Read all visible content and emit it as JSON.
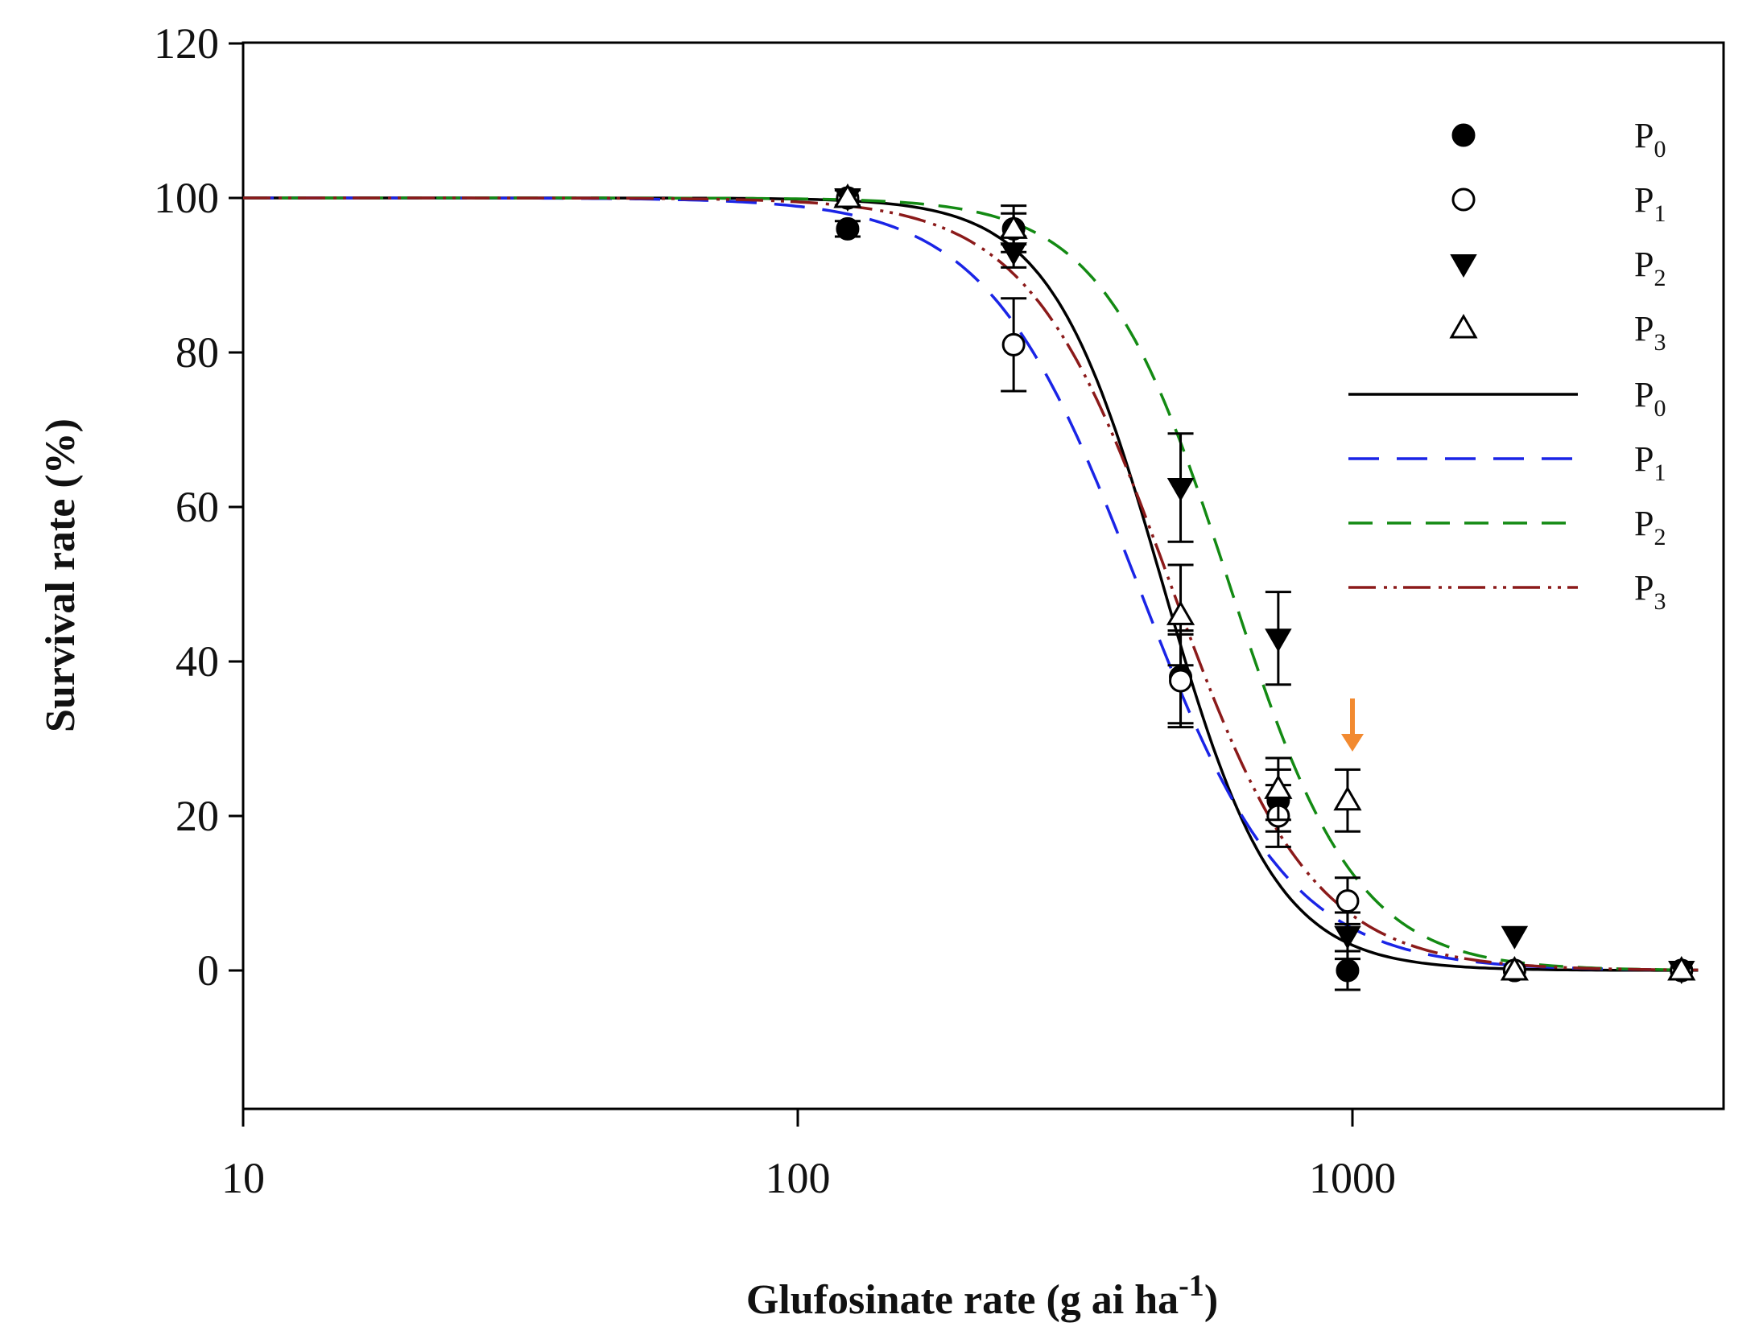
{
  "chart_data": {
    "type": "scatter",
    "title": "",
    "xlabel": "Glufosinate rate (g ai ha",
    "xlabel_sup": "-1",
    "xlabel_end": ")",
    "ylabel": "Survival rate (%)",
    "xscale": "log",
    "xlim": [
      10,
      4200
    ],
    "ylim": [
      -18,
      120
    ],
    "x_ticks": [
      10,
      100,
      1000
    ],
    "x_tick_labels": [
      "10",
      "100",
      "1000"
    ],
    "y_ticks": [
      0,
      20,
      40,
      60,
      80,
      100,
      120
    ],
    "y_tick_labels": [
      "0",
      "20",
      "40",
      "60",
      "80",
      "100",
      "120"
    ],
    "legend_position": "top-right",
    "point_series": [
      {
        "name": "P",
        "sub": "0",
        "marker": "filled-circle",
        "points": [
          {
            "x": 123,
            "y": 96,
            "err": 1
          },
          {
            "x": 245,
            "y": 96,
            "err": 2
          },
          {
            "x": 490,
            "y": 38,
            "err": 6
          },
          {
            "x": 735,
            "y": 22,
            "err": 4
          },
          {
            "x": 980,
            "y": 0,
            "err": 2.5
          },
          {
            "x": 1960,
            "y": 0,
            "err": 0
          },
          {
            "x": 3920,
            "y": 0,
            "err": 0
          }
        ]
      },
      {
        "name": "P",
        "sub": "1",
        "marker": "open-circle",
        "points": [
          {
            "x": 123,
            "y": 100,
            "err": 1
          },
          {
            "x": 245,
            "y": 81,
            "err": 6
          },
          {
            "x": 490,
            "y": 37.5,
            "err": 6
          },
          {
            "x": 735,
            "y": 20,
            "err": 4
          },
          {
            "x": 980,
            "y": 9,
            "err": 3
          },
          {
            "x": 1960,
            "y": 0,
            "err": 0
          },
          {
            "x": 3920,
            "y": 0,
            "err": 0
          }
        ]
      },
      {
        "name": "P",
        "sub": "2",
        "marker": "filled-triangle-down",
        "points": [
          {
            "x": 123,
            "y": 100,
            "err": 1
          },
          {
            "x": 245,
            "y": 93,
            "err": 2
          },
          {
            "x": 490,
            "y": 62.5,
            "err": 7
          },
          {
            "x": 735,
            "y": 43,
            "err": 6
          },
          {
            "x": 980,
            "y": 4.5,
            "err": 3
          },
          {
            "x": 1960,
            "y": 4.5,
            "err": 0
          },
          {
            "x": 3920,
            "y": 0,
            "err": 0
          }
        ]
      },
      {
        "name": "P",
        "sub": "3",
        "marker": "open-triangle-up",
        "points": [
          {
            "x": 123,
            "y": 100,
            "err": 1
          },
          {
            "x": 245,
            "y": 96,
            "err": 3
          },
          {
            "x": 490,
            "y": 46,
            "err": 6.5
          },
          {
            "x": 735,
            "y": 23.5,
            "err": 4
          },
          {
            "x": 980,
            "y": 22,
            "err": 4
          },
          {
            "x": 1960,
            "y": 0,
            "err": 0
          },
          {
            "x": 3920,
            "y": 0,
            "err": 0
          }
        ]
      }
    ],
    "fit_series": [
      {
        "name": "P",
        "sub": "0",
        "color": "#000000",
        "dash": "",
        "ed50": 455,
        "slope": 4.3
      },
      {
        "name": "P",
        "sub": "1",
        "color": "#1a24e6",
        "dash": "38,22",
        "ed50": 410,
        "slope": 3.2
      },
      {
        "name": "P",
        "sub": "2",
        "color": "#138a13",
        "dash": "30,18",
        "ed50": 600,
        "slope": 3.8
      },
      {
        "name": "P",
        "sub": "3",
        "color": "#8b1a1a",
        "dash": "34,10,4,8,4,8",
        "ed50": 470,
        "slope": 3.4
      }
    ],
    "annotation": {
      "type": "arrow",
      "x": 1000,
      "y_from": 32,
      "y_to": 27,
      "color": "#f28a30"
    }
  }
}
